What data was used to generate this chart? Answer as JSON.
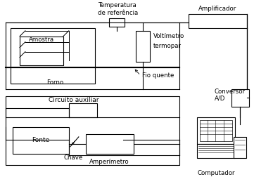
{
  "bg_color": "#ffffff",
  "text_color": "#000000",
  "labels": {
    "temperatura": "Temperatura\nde referência",
    "amplificador": "Amplificador",
    "voltimetro": "Voltímetro",
    "termopar": "termopar",
    "fio_quente": "Fio quente",
    "amostra": "Amostra",
    "forno": "Forno",
    "circuito": "Circuito auxiliar",
    "fonte": "Fonte",
    "chave": "Chave",
    "amperimetro": "Amperímetro",
    "conversor": "Conversor\nA/D",
    "computador": "Computador"
  }
}
